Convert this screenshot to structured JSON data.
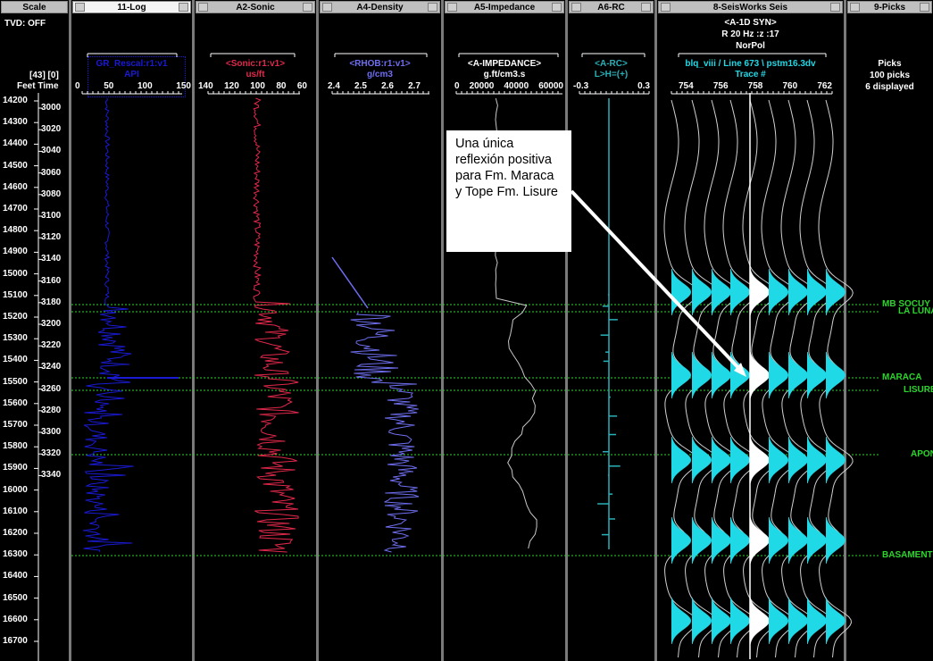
{
  "panels": {
    "scale": {
      "title": "Scale",
      "tvd": "TVD: OFF",
      "code": "[43] [0]",
      "units": "Feet Time"
    },
    "log": {
      "title": "11-Log",
      "curve": "GR_Rescal:r1:v1",
      "unit": "API",
      "ticks": [
        "0",
        "50",
        "100",
        "150"
      ]
    },
    "sonic": {
      "title": "A2-Sonic",
      "curve": "<Sonic:r1:v1>",
      "unit": "us/ft",
      "ticks": [
        "140",
        "120",
        "100",
        "80",
        "60"
      ]
    },
    "density": {
      "title": "A4-Density",
      "curve": "<RHOB:r1:v1>",
      "unit": "g/cm3",
      "ticks": [
        "2.4",
        "2.5",
        "2.6",
        "2.7"
      ]
    },
    "impedance": {
      "title": "A5-Impedance",
      "curve": "<A-IMPEDANCE>",
      "unit": "g.ft/cm3.s",
      "ticks": [
        "0",
        "20000",
        "40000",
        "60000"
      ]
    },
    "rc": {
      "title": "A6-RC",
      "curve": "<A-RC>",
      "unit": "L>H=(+)",
      "tick_left": "-0.3",
      "tick_right": "0.3"
    },
    "seis": {
      "title": "8-SeisWorks Seis",
      "syn": "<A-1D SYN>",
      "params": "R 20 Hz :z :17",
      "norm": "NorPol",
      "line": "blq_viii / Line 673 \\ pstm16.3dv",
      "trace": "Trace #",
      "ticks": [
        "754",
        "756",
        "758",
        "760",
        "762"
      ]
    },
    "picks": {
      "title": "9-Picks",
      "header": "Picks",
      "count": "100 picks",
      "displayed": "6 displayed"
    }
  },
  "depths": [
    "14200",
    "14300",
    "14400",
    "14500",
    "14600",
    "14700",
    "14800",
    "14900",
    "15000",
    "15100",
    "15200",
    "15300",
    "15400",
    "15500",
    "15600",
    "15700",
    "15800",
    "15900",
    "16000",
    "16100",
    "16200",
    "16300",
    "16400",
    "16500",
    "16600",
    "16700"
  ],
  "times": [
    "3000",
    "3020",
    "3040",
    "3060",
    "3080",
    "3100",
    "3120",
    "3140",
    "3160",
    "3180",
    "3200",
    "3220",
    "3240",
    "3260",
    "3280",
    "3300",
    "3320",
    "3340"
  ],
  "picks": [
    {
      "name": "MB SOCUY"
    },
    {
      "name": "LA LUNA"
    },
    {
      "name": "MARACA"
    },
    {
      "name": "LISURE"
    },
    {
      "name": "APON"
    },
    {
      "name": "BASAMENTO"
    }
  ],
  "annotation": {
    "text": "Una única reflexión positiva para Fm. Maraca y Tope Fm. Lisure"
  },
  "colors": {
    "gamma": "#1a1ad4",
    "sonic": "#e0284a",
    "density": "#6e6ef0",
    "impedance": "#c8c8c8",
    "rc": "#2ab0b8",
    "seismic": "#1fd9e6",
    "pick": "#2bd62b"
  }
}
